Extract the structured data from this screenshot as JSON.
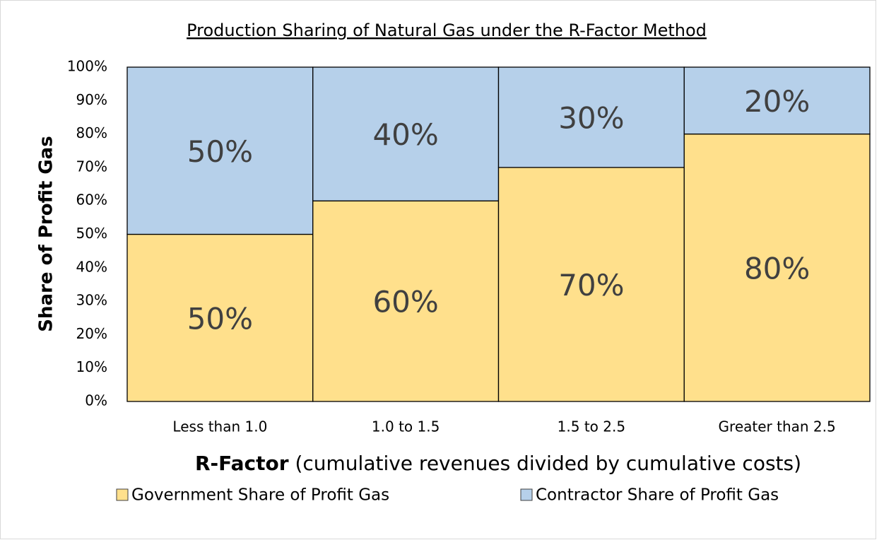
{
  "chart_data": {
    "type": "stacked_bar",
    "title": "Production Sharing of Natural Gas under the R-Factor Method",
    "ylabel": "Share of Profit Gas",
    "xlabel": [
      "R-Factor",
      "(cumulative revenues divided by cumulative costs)"
    ],
    "categories": [
      "Less than 1.0",
      "1.0 to 1.5",
      "1.5 to 2.5",
      "Greater than 2.5"
    ],
    "series": [
      {
        "name": "Government Share of Profit Gas",
        "color": "#FFE08C",
        "values": [
          50,
          60,
          70,
          80
        ],
        "value_labels": [
          "50%",
          "60%",
          "70%",
          "80%"
        ]
      },
      {
        "name": "Contractor Share of Profit Gas",
        "color": "#B6D0EA",
        "values": [
          50,
          40,
          30,
          20
        ],
        "value_labels": [
          "50%",
          "40%",
          "30%",
          "20%"
        ]
      }
    ],
    "ylim": [
      0,
      100
    ],
    "yticks": [
      {
        "value": 0,
        "label": "0%"
      },
      {
        "value": 10,
        "label": "10%"
      },
      {
        "value": 20,
        "label": "20%"
      },
      {
        "value": 30,
        "label": "30%"
      },
      {
        "value": 40,
        "label": "40%"
      },
      {
        "value": 50,
        "label": "50%"
      },
      {
        "value": 60,
        "label": "60%"
      },
      {
        "value": 70,
        "label": "70%"
      },
      {
        "value": 80,
        "label": "80%"
      },
      {
        "value": 90,
        "label": "90%"
      },
      {
        "value": 100,
        "label": "100%"
      }
    ],
    "grid": true,
    "legend": "bottom"
  }
}
